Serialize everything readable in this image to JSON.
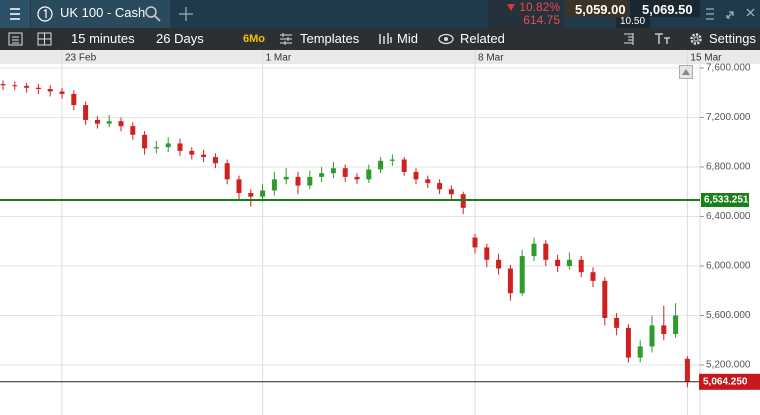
{
  "toolbar": {
    "instrument": "UK 100 - Cash",
    "change_pct": "10.82%",
    "change_points": "614.75",
    "sell_price": "5,059.00",
    "spread": "10.50",
    "buy_price": "5,069.50",
    "interval": "15 minutes",
    "range": "26 Days",
    "preset": "6Mo",
    "templates": "Templates",
    "price_mode": "Mid",
    "related": "Related",
    "settings": "Settings"
  },
  "chart_data": {
    "type": "candlestick",
    "categories": [
      null,
      null,
      null,
      null,
      null,
      "23 Feb",
      null,
      null,
      null,
      null,
      null,
      null,
      null,
      null,
      null,
      null,
      null,
      null,
      null,
      null,
      null,
      null,
      "1 Mar",
      null,
      null,
      null,
      null,
      null,
      null,
      null,
      null,
      null,
      null,
      null,
      null,
      null,
      null,
      null,
      null,
      null,
      "8 Mar",
      null,
      null,
      null,
      null,
      null,
      null,
      null,
      null,
      null,
      null,
      null,
      null,
      null,
      null,
      null,
      null,
      null,
      "15 Mar"
    ],
    "open": [
      7470,
      7460,
      7455,
      7440,
      7430,
      7410,
      7390,
      7300,
      7180,
      7150,
      7170,
      7130,
      7060,
      6950,
      6960,
      6990,
      6930,
      6900,
      6880,
      6830,
      6700,
      6590,
      6560,
      6610,
      6700,
      6720,
      6650,
      6720,
      6750,
      6790,
      6720,
      6700,
      6780,
      6850,
      6860,
      6760,
      6700,
      6670,
      6620,
      6580,
      6230,
      6150,
      6050,
      5980,
      5780,
      6080,
      6180,
      6050,
      6000,
      6050,
      5950,
      5880,
      5580,
      5500,
      5260,
      5350,
      5520,
      5450,
      5250
    ],
    "high": [
      7500,
      7490,
      7480,
      7470,
      7460,
      7440,
      7420,
      7330,
      7210,
      7220,
      7200,
      7160,
      7090,
      7010,
      7040,
      7030,
      6960,
      6940,
      6910,
      6860,
      6730,
      6620,
      6660,
      6760,
      6790,
      6760,
      6770,
      6800,
      6840,
      6820,
      6750,
      6820,
      6880,
      6900,
      6880,
      6790,
      6730,
      6700,
      6650,
      6600,
      6260,
      6180,
      6100,
      6010,
      6130,
      6230,
      6210,
      6090,
      6110,
      6080,
      5990,
      5910,
      5620,
      5530,
      5400,
      5600,
      5680,
      5700,
      5270
    ],
    "low": [
      7420,
      7420,
      7400,
      7390,
      7370,
      7350,
      7260,
      7140,
      7110,
      7120,
      7090,
      7020,
      6900,
      6910,
      6920,
      6890,
      6860,
      6840,
      6790,
      6660,
      6540,
      6480,
      6520,
      6570,
      6660,
      6580,
      6620,
      6680,
      6710,
      6680,
      6660,
      6670,
      6750,
      6810,
      6730,
      6660,
      6630,
      6580,
      6540,
      6420,
      6100,
      5990,
      5930,
      5720,
      5760,
      6040,
      6000,
      5950,
      5970,
      5910,
      5830,
      5520,
      5440,
      5220,
      5220,
      5300,
      5400,
      5420,
      5020
    ],
    "close": [
      7460,
      7455,
      7440,
      7430,
      7410,
      7390,
      7300,
      7180,
      7150,
      7170,
      7130,
      7060,
      6950,
      6960,
      6990,
      6930,
      6900,
      6880,
      6830,
      6700,
      6590,
      6560,
      6610,
      6700,
      6720,
      6650,
      6720,
      6750,
      6790,
      6720,
      6700,
      6780,
      6850,
      6860,
      6760,
      6700,
      6670,
      6620,
      6580,
      6470,
      6150,
      6050,
      5980,
      5780,
      6080,
      6180,
      6050,
      6000,
      6050,
      5950,
      5880,
      5580,
      5500,
      5260,
      5350,
      5520,
      5450,
      5600,
      5064.25
    ],
    "up_color": "#2e9b2e",
    "down_color": "#d02020",
    "ylim": [
      4796,
      7632
    ],
    "yticks": [
      {
        "value": 7600,
        "label": "7,600.000"
      },
      {
        "value": 7200,
        "label": "7,200.000"
      },
      {
        "value": 6800,
        "label": "6,800.000"
      },
      {
        "value": 6400,
        "label": "6,400.000"
      },
      {
        "value": 6000,
        "label": "6,000.000"
      },
      {
        "value": 5600,
        "label": "5,600.000"
      },
      {
        "value": 5200,
        "label": "5,200.000"
      }
    ],
    "grid": true,
    "hline": {
      "value": 6533.251,
      "label": "6,533.251",
      "color": "#1a7f1a"
    },
    "last_price": {
      "value": 5064.25,
      "label": "5,064.250",
      "color": "#c8161d"
    }
  }
}
